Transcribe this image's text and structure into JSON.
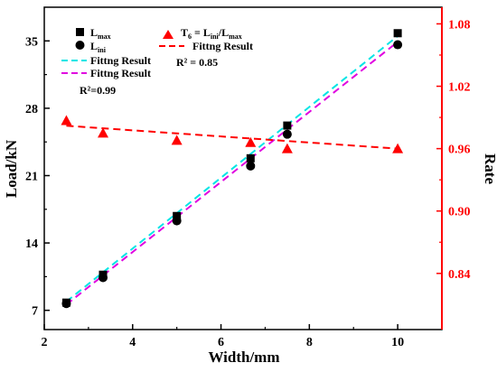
{
  "chart_data": {
    "type": "scatter",
    "title": "",
    "xlabel": "Width/mm",
    "ylabel_left": "Load/kN",
    "ylabel_right": "Rate",
    "xlim": [
      2,
      11
    ],
    "ylim_left": [
      5,
      38.5
    ],
    "ylim_right": [
      0.786,
      1.096
    ],
    "x_ticks": [
      2,
      4,
      6,
      8,
      10
    ],
    "y_left_ticks": [
      7,
      14,
      21,
      28,
      35
    ],
    "y_right_ticks": [
      0.84,
      0.9,
      0.96,
      1.02,
      1.08
    ],
    "y_right_tick_labels": [
      "0.84",
      "0.90",
      "0.96",
      "1.02",
      "1.08"
    ],
    "grid": false,
    "colors": {
      "left_axis": "#000000",
      "right_axis": "#ff0000",
      "fit_lmax": "#00e5e5",
      "fit_lini": "#e000e0",
      "fit_t6": "#ff0000"
    },
    "series": [
      {
        "key": "lmax",
        "name": "L_max",
        "axis": "left",
        "marker": "square",
        "color": "#000000",
        "x": [
          2.5,
          3.33,
          5,
          6.67,
          7.5,
          10
        ],
        "y": [
          7.8,
          10.7,
          16.8,
          22.8,
          26.2,
          35.8
        ]
      },
      {
        "key": "lini",
        "name": "L_ini",
        "axis": "left",
        "marker": "circle",
        "color": "#000000",
        "x": [
          2.5,
          3.33,
          5,
          6.67,
          7.5,
          10
        ],
        "y": [
          7.7,
          10.4,
          16.3,
          22.0,
          25.3,
          34.6
        ]
      },
      {
        "key": "t6",
        "name": "T_6 = L_ini/L_max",
        "axis": "right",
        "marker": "triangle",
        "color": "#ff0000",
        "x": [
          2.5,
          3.33,
          5,
          6.67,
          7.5,
          10
        ],
        "y": [
          0.987,
          0.975,
          0.968,
          0.966,
          0.96,
          0.96
        ]
      }
    ],
    "fits": [
      {
        "key": "fit_lmax",
        "name": "Fittng Result",
        "axis": "left",
        "color": "#00e5e5",
        "x": [
          2.5,
          10
        ],
        "y": [
          7.9,
          35.5
        ]
      },
      {
        "key": "fit_lini",
        "name": "Fittng Result",
        "axis": "left",
        "color": "#e000e0",
        "x": [
          2.5,
          10
        ],
        "y": [
          7.6,
          34.9
        ]
      },
      {
        "key": "fit_t6",
        "name": "Fittng Result",
        "axis": "right",
        "color": "#ff0000",
        "x": [
          2.5,
          10
        ],
        "y": [
          0.982,
          0.96
        ]
      }
    ],
    "annotations": {
      "r2_left": "R²=0.99",
      "r2_right": "R² = 0.85"
    },
    "legend": {
      "lmax_main": "L",
      "lmax_sub": "max",
      "lini_main": "L",
      "lini_sub": "ini",
      "t6_a": "T",
      "t6_a_sub": "6",
      "t6_b": " = L",
      "t6_b_sub": "ini",
      "t6_c": "/L",
      "t6_c_sub": "max",
      "fit_label": "Fittng Result"
    }
  }
}
